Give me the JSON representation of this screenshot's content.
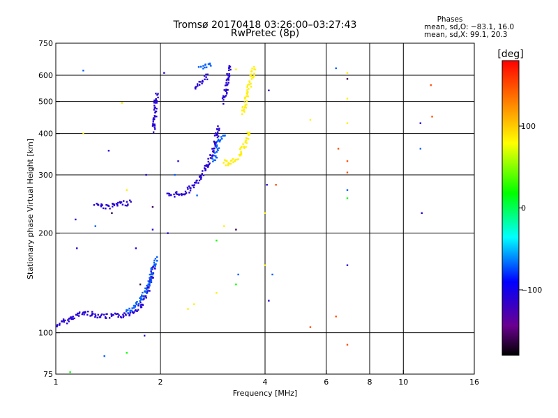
{
  "chart_data": {
    "type": "scatter",
    "title": "Tromsø 20170418 03:26:00–03:27:43",
    "subtitle": "RwPretec (8p)",
    "xlabel": "Frequency [MHz]",
    "ylabel": "Stationary phase Virtual Height [km]",
    "x_scale": "log",
    "y_scale": "log",
    "xlim": [
      1,
      16
    ],
    "ylim": [
      75,
      750
    ],
    "x_ticks": [
      "1",
      "2",
      "4",
      "6",
      "8",
      "10",
      "16"
    ],
    "x_tick_values": [
      1,
      2,
      4,
      6,
      8,
      10,
      16
    ],
    "y_ticks": [
      "75",
      "100",
      "200",
      "300",
      "400",
      "500",
      "600",
      "750"
    ],
    "y_tick_values": [
      75,
      100,
      200,
      300,
      400,
      500,
      600,
      750
    ],
    "x_grid": [
      2,
      4,
      6,
      8,
      10
    ],
    "y_grid": [
      100,
      200,
      300,
      400,
      500,
      600
    ],
    "stats": {
      "heading": "Phases",
      "o_line": "mean, sd,O: −83.1, 16.0",
      "x_line": "mean, sd,X:  99.1, 20.3"
    },
    "colorbar": {
      "label": "[deg]",
      "range": [
        -180,
        180
      ],
      "ticks": [
        "100",
        "0",
        "−100"
      ],
      "tick_values": [
        100,
        0,
        -100
      ]
    },
    "series": [
      {
        "phase_deg": -110,
        "segments": [
          {
            "x": [
              1.0,
              1.2,
              1.4,
              1.6,
              1.75,
              1.85,
              1.92
            ],
            "y": [
              105,
              115,
              112,
              113,
              120,
              135,
              160
            ]
          },
          {
            "x": [
              1.3,
              1.4,
              1.55,
              1.65
            ],
            "y": [
              245,
              240,
              245,
              248
            ]
          },
          {
            "x": [
              1.92,
              1.93,
              1.95
            ],
            "y": [
              410,
              450,
              530
            ]
          },
          {
            "x": [
              2.5,
              2.65,
              2.75
            ],
            "y": [
              550,
              575,
              600
            ]
          },
          {
            "x": [
              3.05,
              3.1,
              3.15,
              3.2
            ],
            "y": [
              500,
              560,
              620,
              640
            ]
          },
          {
            "x": [
              2.1,
              2.35,
              2.6,
              2.8,
              2.95
            ],
            "y": [
              260,
              265,
              290,
              340,
              420
            ]
          }
        ],
        "scatter": [
          {
            "x": 1.14,
            "y": 220
          },
          {
            "x": 1.42,
            "y": 355
          },
          {
            "x": 1.7,
            "y": 180
          },
          {
            "x": 1.82,
            "y": 300
          },
          {
            "x": 1.9,
            "y": 205
          },
          {
            "x": 2.05,
            "y": 610
          },
          {
            "x": 2.1,
            "y": 200
          },
          {
            "x": 2.25,
            "y": 330
          },
          {
            "x": 4.05,
            "y": 280
          },
          {
            "x": 4.1,
            "y": 540
          },
          {
            "x": 11.3,
            "y": 230
          },
          {
            "x": 11.2,
            "y": 430
          },
          {
            "x": 6.9,
            "y": 160
          },
          {
            "x": 4.1,
            "y": 125
          },
          {
            "x": 1.15,
            "y": 180
          },
          {
            "x": 1.8,
            "y": 98
          }
        ]
      },
      {
        "phase_deg": -70,
        "segments": [
          {
            "x": [
              1.6,
              1.75,
              1.85,
              1.95
            ],
            "y": [
              115,
              125,
              140,
              170
            ]
          },
          {
            "x": [
              2.85,
              2.95,
              3.05
            ],
            "y": [
              330,
              380,
              400
            ]
          },
          {
            "x": [
              2.6,
              2.8
            ],
            "y": [
              630,
              650
            ]
          }
        ],
        "scatter": [
          {
            "x": 1.2,
            "y": 620
          },
          {
            "x": 1.3,
            "y": 210
          },
          {
            "x": 2.2,
            "y": 300
          },
          {
            "x": 2.55,
            "y": 260
          },
          {
            "x": 6.4,
            "y": 630
          },
          {
            "x": 6.9,
            "y": 270
          },
          {
            "x": 11.2,
            "y": 360
          },
          {
            "x": 1.38,
            "y": 85
          },
          {
            "x": 3.35,
            "y": 150
          },
          {
            "x": 4.2,
            "y": 150
          }
        ]
      },
      {
        "phase_deg": 85,
        "segments": [
          {
            "x": [
              3.05,
              3.15,
              3.25,
              3.35,
              3.5,
              3.6
            ],
            "y": [
              330,
              320,
              330,
              340,
              370,
              410
            ]
          },
          {
            "x": [
              3.45,
              3.55,
              3.65,
              3.72
            ],
            "y": [
              460,
              520,
              580,
              640
            ]
          }
        ],
        "scatter": [
          {
            "x": 2.4,
            "y": 118
          },
          {
            "x": 2.5,
            "y": 122
          },
          {
            "x": 2.9,
            "y": 132
          },
          {
            "x": 3.05,
            "y": 210
          },
          {
            "x": 3.3,
            "y": 625
          },
          {
            "x": 6.9,
            "y": 430
          },
          {
            "x": 6.9,
            "y": 510
          },
          {
            "x": 6.9,
            "y": 610
          },
          {
            "x": 5.4,
            "y": 440
          },
          {
            "x": 4.0,
            "y": 230
          },
          {
            "x": 4.0,
            "y": 160
          },
          {
            "x": 1.55,
            "y": 495
          },
          {
            "x": 1.6,
            "y": 270
          },
          {
            "x": 1.2,
            "y": 400
          }
        ]
      },
      {
        "phase_deg": 150,
        "segments": [],
        "scatter": [
          {
            "x": 12.0,
            "y": 560
          },
          {
            "x": 12.1,
            "y": 450
          },
          {
            "x": 6.9,
            "y": 330
          },
          {
            "x": 6.5,
            "y": 360
          },
          {
            "x": 6.4,
            "y": 112
          },
          {
            "x": 5.4,
            "y": 104
          },
          {
            "x": 6.9,
            "y": 92
          },
          {
            "x": 6.9,
            "y": 305
          },
          {
            "x": 4.3,
            "y": 280
          }
        ]
      },
      {
        "phase_deg": 20,
        "segments": [],
        "scatter": [
          {
            "x": 1.6,
            "y": 87
          },
          {
            "x": 1.1,
            "y": 76
          },
          {
            "x": 2.9,
            "y": 190
          },
          {
            "x": 3.3,
            "y": 140
          },
          {
            "x": 6.9,
            "y": 255
          }
        ]
      },
      {
        "phase_deg": -160,
        "segments": [],
        "scatter": [
          {
            "x": 3.3,
            "y": 205
          },
          {
            "x": 1.9,
            "y": 240
          },
          {
            "x": 6.9,
            "y": 585
          },
          {
            "x": 1.75,
            "y": 140
          },
          {
            "x": 1.45,
            "y": 230
          }
        ]
      }
    ]
  }
}
